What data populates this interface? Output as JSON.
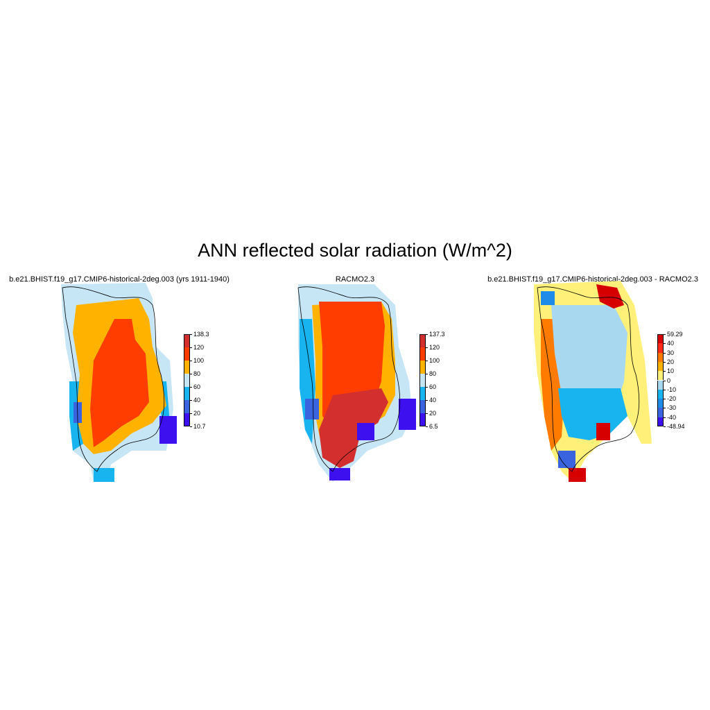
{
  "title": "ANN reflected solar radiation (W/m^2)",
  "panels": [
    {
      "title": "b.e21.BHIST.f19_g17.CMIP6-historical-2deg.003 (yrs 1911-1940)",
      "colorbar": {
        "labels": [
          "138.3",
          "120",
          "100",
          "80",
          "60",
          "40",
          "20",
          "10.7"
        ],
        "colors": [
          "#d32f2f",
          "#ff3d00",
          "#ffb300",
          "#c7e6f5",
          "#18b4f0",
          "#3a63e0",
          "#3d10f0"
        ]
      }
    },
    {
      "title": "RACMO2.3",
      "colorbar": {
        "labels": [
          "137.3",
          "120",
          "100",
          "80",
          "60",
          "40",
          "20",
          "6.5"
        ],
        "colors": [
          "#d32f2f",
          "#ff3d00",
          "#ffb300",
          "#c7e6f5",
          "#18b4f0",
          "#3a63e0",
          "#3d10f0"
        ]
      }
    },
    {
      "title": "b.e21.BHIST.f19_g17.CMIP6-historical-2deg.003 - RACMO2.3",
      "colorbar": {
        "labels": [
          "59.29",
          "40",
          "30",
          "20",
          "10",
          "0",
          "-10",
          "-20",
          "-30",
          "-40",
          "-48.94"
        ],
        "colors": [
          "#d60000",
          "#ff2a1a",
          "#ff7b00",
          "#ffb300",
          "#fff07a",
          "#a8d8f0",
          "#18b4f0",
          "#1e8be8",
          "#3a63e0",
          "#3d10f0"
        ]
      }
    }
  ]
}
